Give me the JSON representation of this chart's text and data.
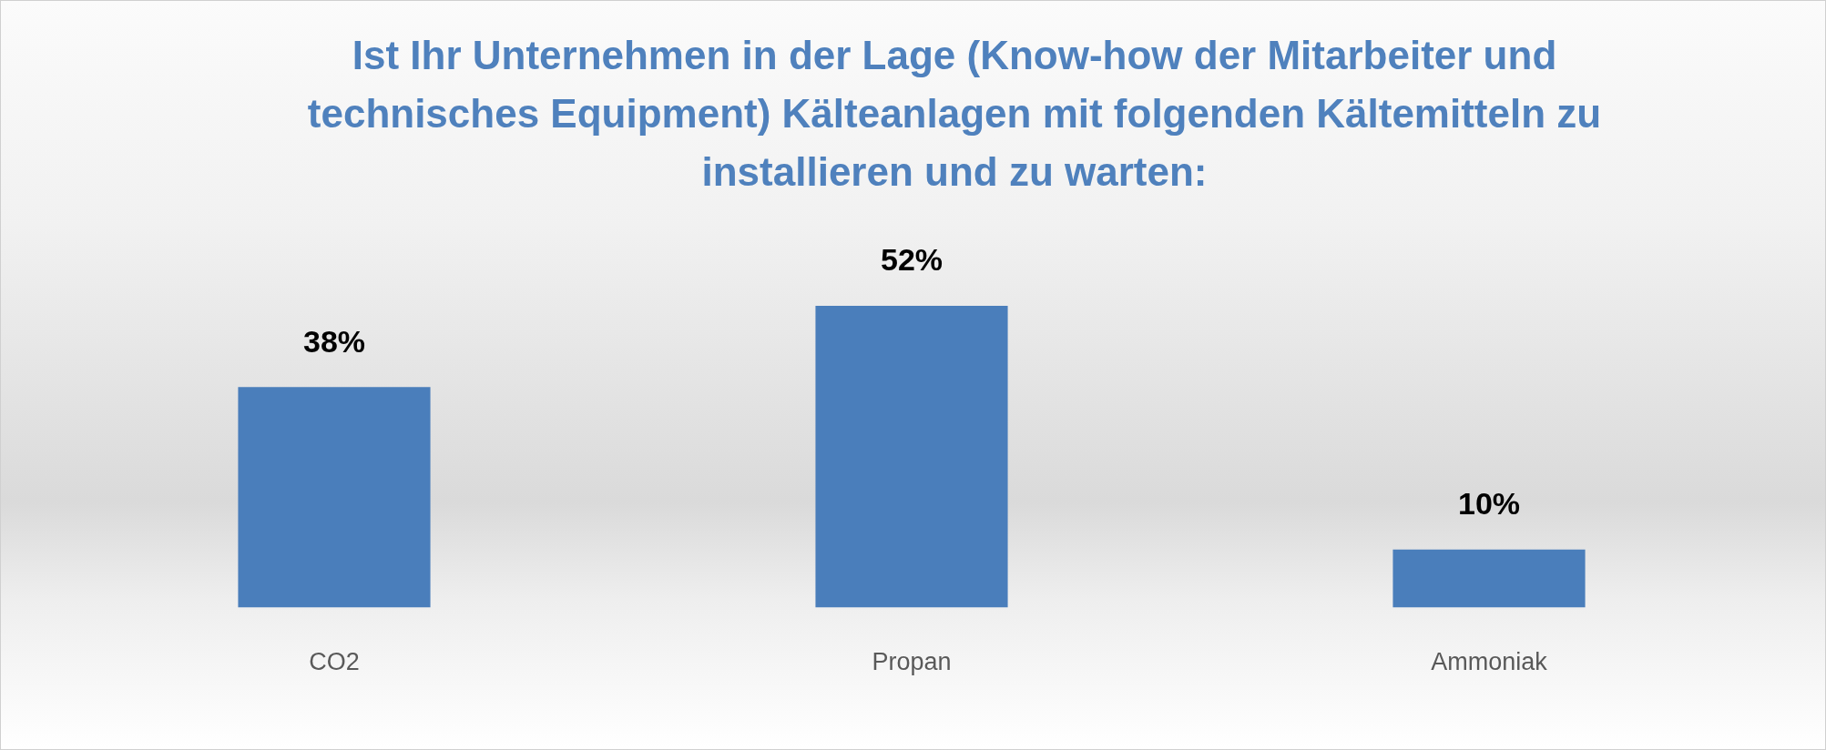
{
  "chart_data": {
    "type": "bar",
    "title": "Ist Ihr Unternehmen in der Lage (Know-how der Mitarbeiter und technisches Equipment) Kälteanlagen mit folgenden Kältemitteln zu installieren und zu warten:",
    "categories": [
      "CO2",
      "Propan",
      "Ammoniak"
    ],
    "values": [
      38,
      52,
      10
    ],
    "value_labels": [
      "38%",
      "52%",
      "10%"
    ],
    "color": "#4a7ebb"
  }
}
